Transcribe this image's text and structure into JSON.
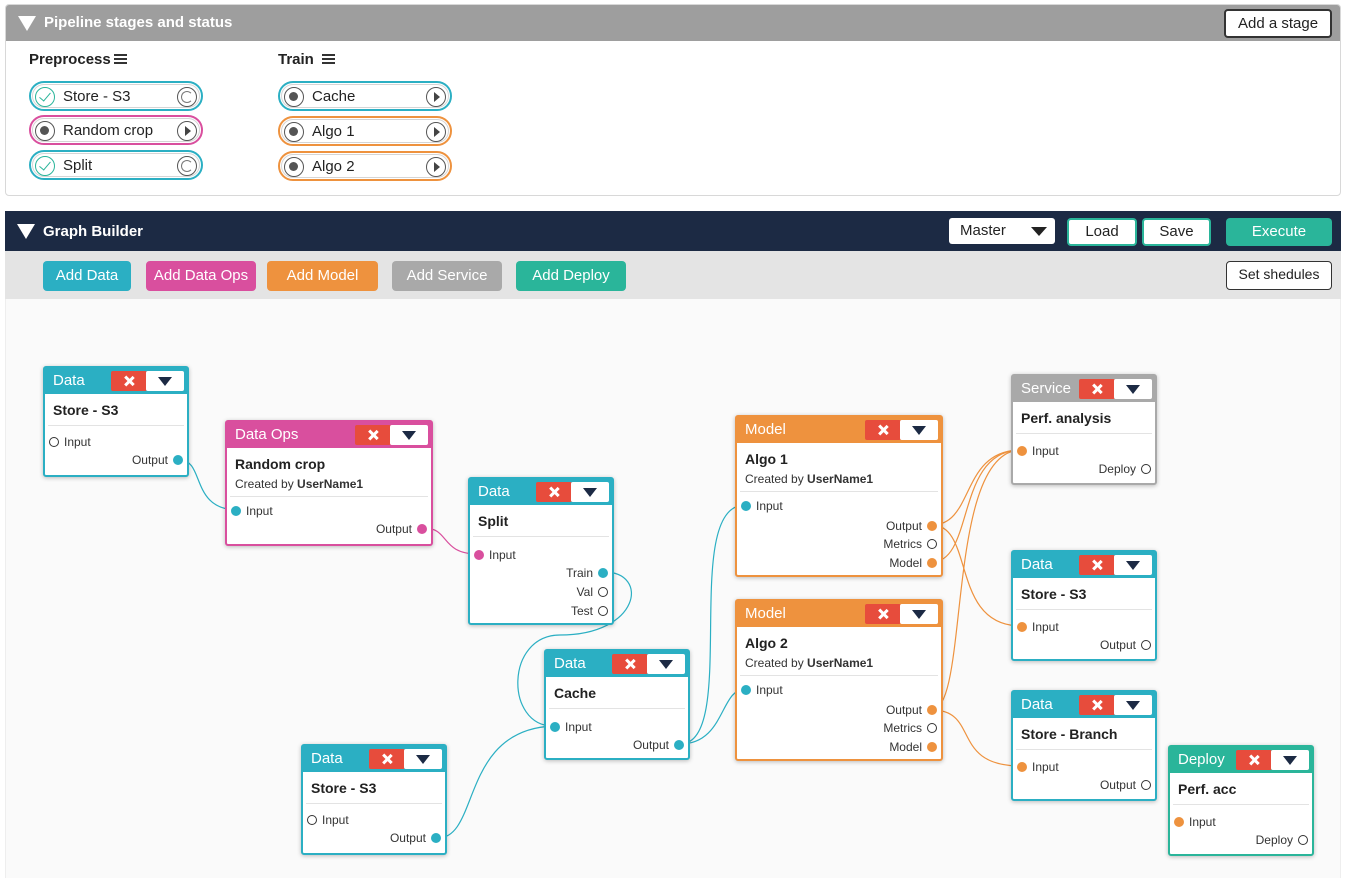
{
  "pipeline": {
    "title": "Pipeline stages and status",
    "add_stage_label": "Add a stage",
    "columns": [
      {
        "title": "Preprocess",
        "stages": [
          {
            "label": "Store - S3",
            "status": "done",
            "action": "refresh",
            "color": "#2bafc3"
          },
          {
            "label": "Random crop",
            "status": "pending",
            "action": "play",
            "color": "#d94f9e"
          },
          {
            "label": "Split",
            "status": "done",
            "action": "refresh",
            "color": "#2bafc3"
          }
        ]
      },
      {
        "title": "Train",
        "stages": [
          {
            "label": "Cache",
            "status": "pending",
            "action": "play",
            "color": "#2bafc3"
          },
          {
            "label": "Algo 1",
            "status": "pending",
            "action": "play",
            "color": "#ee923e"
          },
          {
            "label": "Algo 2",
            "status": "pending",
            "action": "play",
            "color": "#ee923e"
          }
        ]
      }
    ]
  },
  "graph_builder": {
    "title": "Graph Builder",
    "branch_select": "Master",
    "load_label": "Load",
    "save_label": "Save",
    "execute_label": "Execute",
    "toolbar": {
      "add_data": "Add Data",
      "add_data_ops": "Add Data Ops",
      "add_model": "Add Model",
      "add_service": "Add Service",
      "add_deploy": "Add Deploy",
      "set_schedules": "Set shedules"
    },
    "colors": {
      "data": "#2bafc3",
      "data_ops": "#d94f9e",
      "model": "#ee923e",
      "service": "#a9a9a9",
      "deploy": "#2ab59a",
      "delete": "#e74c3c"
    },
    "nodes": {
      "n1": {
        "type": "Data",
        "title": "Store - S3",
        "ports_in": [
          "Input"
        ],
        "ports_out": [
          "Output"
        ]
      },
      "n2": {
        "type": "Data Ops",
        "title": "Random crop",
        "created_by_prefix": "Created by",
        "created_by": "UserName1",
        "ports_in": [
          "Input"
        ],
        "ports_out": [
          "Output"
        ]
      },
      "n3": {
        "type": "Data",
        "title": "Split",
        "ports_in": [
          "Input"
        ],
        "ports_out": [
          "Train",
          "Val",
          "Test"
        ]
      },
      "n4": {
        "type": "Data",
        "title": "Cache",
        "ports_in": [
          "Input"
        ],
        "ports_out": [
          "Output"
        ]
      },
      "n5": {
        "type": "Data",
        "title": "Store - S3",
        "ports_in": [
          "Input"
        ],
        "ports_out": [
          "Output"
        ]
      },
      "n6": {
        "type": "Model",
        "title": "Algo 1",
        "created_by_prefix": "Created by",
        "created_by": "UserName1",
        "ports_in": [
          "Input"
        ],
        "ports_out": [
          "Output",
          "Metrics",
          "Model"
        ]
      },
      "n7": {
        "type": "Model",
        "title": "Algo 2",
        "created_by_prefix": "Created by",
        "created_by": "UserName1",
        "ports_in": [
          "Input"
        ],
        "ports_out": [
          "Output",
          "Metrics",
          "Model"
        ]
      },
      "n8": {
        "type": "Service",
        "title": "Perf. analysis",
        "ports_in": [
          "Input"
        ],
        "ports_out": [
          "Deploy"
        ]
      },
      "n9": {
        "type": "Data",
        "title": "Store - S3",
        "ports_in": [
          "Input"
        ],
        "ports_out": [
          "Output"
        ]
      },
      "n10": {
        "type": "Data",
        "title": "Store - Branch",
        "ports_in": [
          "Input"
        ],
        "ports_out": [
          "Output"
        ]
      },
      "n11": {
        "type": "Deploy",
        "title": "Perf. acc",
        "ports_in": [
          "Input"
        ],
        "ports_out": [
          "Deploy"
        ]
      }
    }
  }
}
